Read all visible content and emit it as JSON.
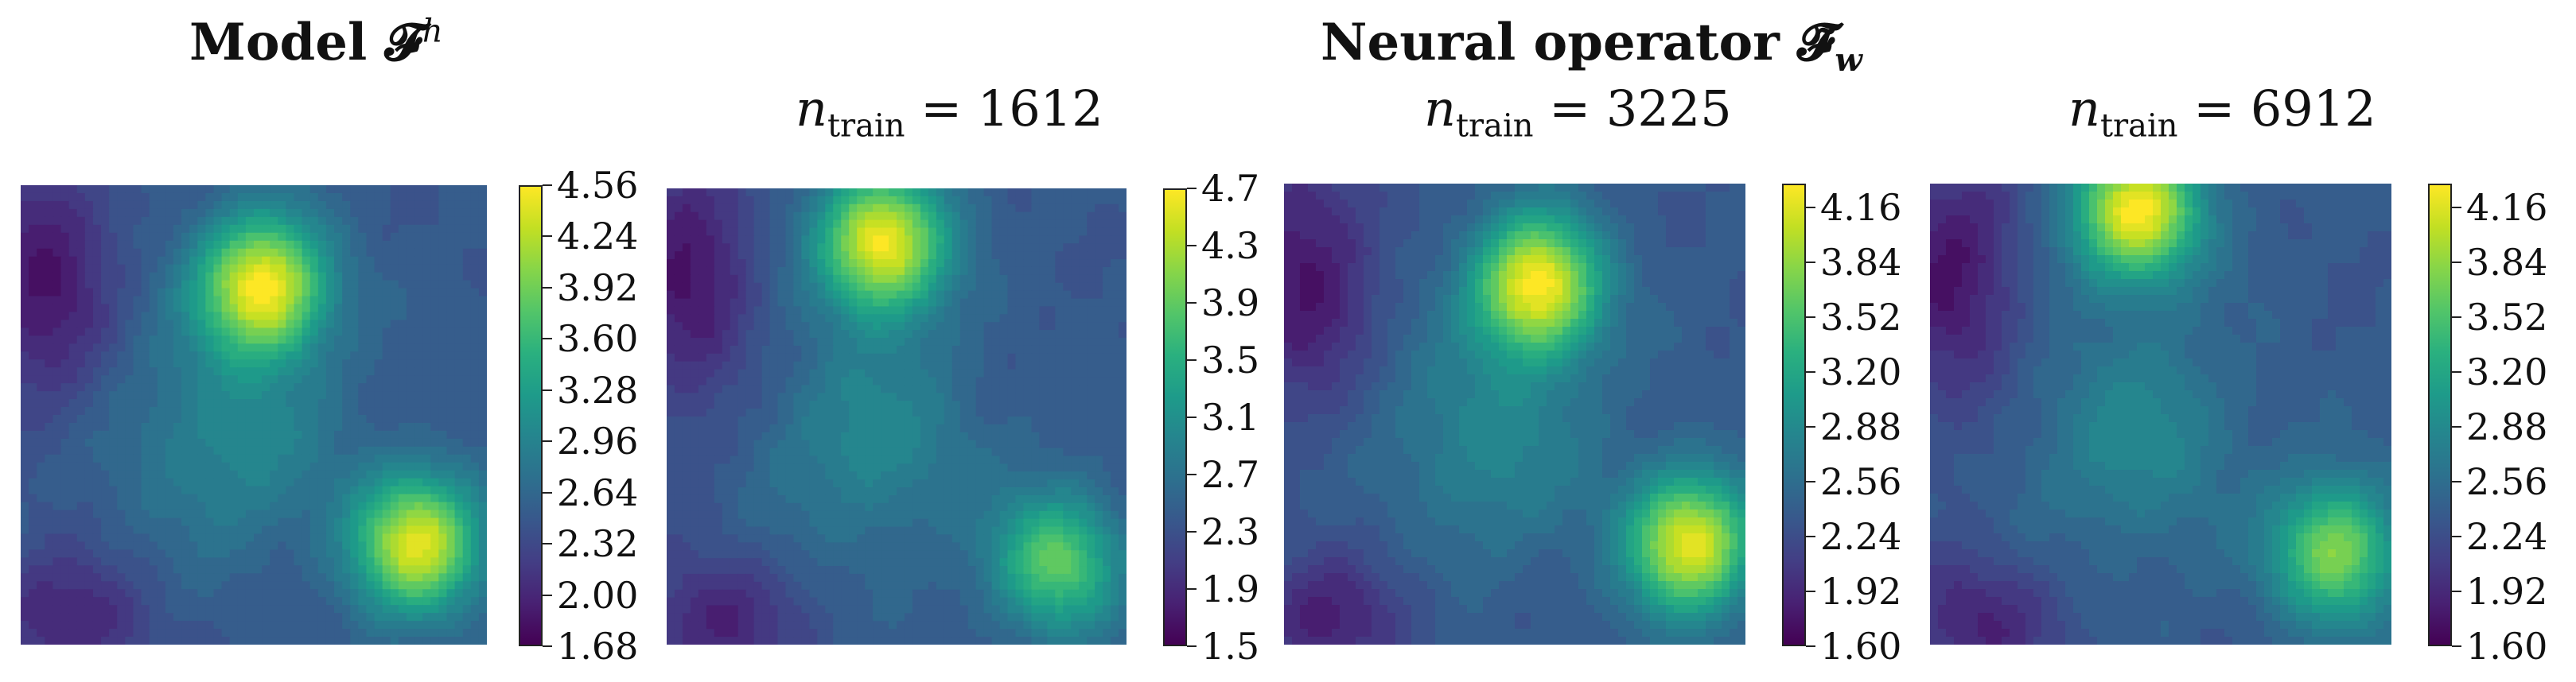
{
  "header": {
    "model_title": "Model 𝓕",
    "model_title_sup": "h",
    "operator_title": "Neural operator 𝓕̃",
    "operator_title_sub": "w"
  },
  "colors": {
    "viridis": [
      "#440154",
      "#482173",
      "#433e85",
      "#38588c",
      "#2d708e",
      "#25858e",
      "#1e9b8a",
      "#2ab07f",
      "#52c569",
      "#86d549",
      "#c2df23",
      "#fde725"
    ]
  },
  "chart_data": [
    {
      "type": "heatmap",
      "title": "Model 𝓕^h",
      "colorbar_ticks": [
        "1.68",
        "2.00",
        "2.32",
        "2.64",
        "2.96",
        "3.28",
        "3.60",
        "3.92",
        "4.24",
        "4.56"
      ],
      "range": [
        1.68,
        4.56
      ],
      "peaks": [
        {
          "x": 0.52,
          "y": 0.22,
          "value": 4.56
        },
        {
          "x": 0.85,
          "y": 0.78,
          "value": 4.4
        }
      ]
    },
    {
      "type": "heatmap",
      "subtitle_var": "n",
      "subtitle_sub": "train",
      "subtitle_val": " = 1612",
      "colorbar_ticks": [
        "1.5",
        "1.9",
        "2.3",
        "2.7",
        "3.1",
        "3.5",
        "3.9",
        "4.3",
        "4.7"
      ],
      "range": [
        1.5,
        4.7
      ],
      "peaks": [
        {
          "x": 0.47,
          "y": 0.12,
          "value": 4.7
        },
        {
          "x": 0.85,
          "y": 0.82,
          "value": 3.9
        }
      ]
    },
    {
      "type": "heatmap",
      "subtitle_var": "n",
      "subtitle_sub": "train",
      "subtitle_val": " = 3225",
      "colorbar_ticks": [
        "1.60",
        "1.92",
        "2.24",
        "2.56",
        "2.88",
        "3.20",
        "3.52",
        "3.84",
        "4.16"
      ],
      "range": [
        1.6,
        4.3
      ],
      "peaks": [
        {
          "x": 0.55,
          "y": 0.22,
          "value": 4.3
        },
        {
          "x": 0.88,
          "y": 0.78,
          "value": 4.2
        }
      ]
    },
    {
      "type": "heatmap",
      "subtitle_var": "n",
      "subtitle_sub": "train",
      "subtitle_val": " = 6912",
      "colorbar_ticks": [
        "1.60",
        "1.92",
        "2.24",
        "2.56",
        "2.88",
        "3.20",
        "3.52",
        "3.84",
        "4.16"
      ],
      "range": [
        1.6,
        4.3
      ],
      "peaks": [
        {
          "x": 0.45,
          "y": 0.06,
          "value": 4.3
        },
        {
          "x": 0.88,
          "y": 0.8,
          "value": 3.8
        }
      ]
    }
  ]
}
